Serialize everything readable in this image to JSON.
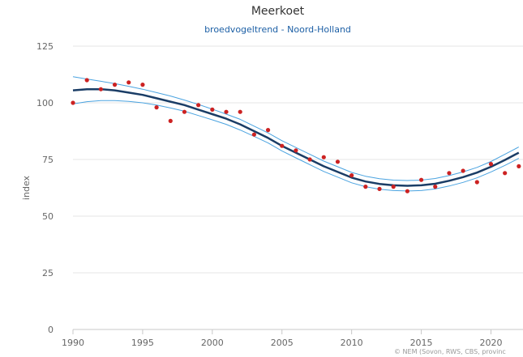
{
  "chart_data": {
    "type": "line",
    "title": "Meerkoet",
    "subtitle": "broedvogeltrend - Noord-Holland",
    "xlabel": "",
    "ylabel": "index",
    "xlim": [
      1990,
      2022.3
    ],
    "ylim": [
      0,
      125
    ],
    "x_ticks": [
      1990,
      1995,
      2000,
      2005,
      2010,
      2015,
      2020
    ],
    "y_ticks": [
      0,
      25,
      50,
      75,
      100,
      125
    ],
    "grid": "horizontal",
    "legend": "none",
    "credits": "© NEM (Sovon, RWS, CBS, provinc",
    "colors": {
      "trend": "#1a3d66",
      "band": "#4aa3e0",
      "points": "#cc2222",
      "grid": "#e6e6e6",
      "axis_text": "#666666"
    },
    "series": [
      {
        "type": "scatter",
        "x": [
          1990,
          1991,
          1992,
          1993,
          1994,
          1995,
          1996,
          1997,
          1998,
          1999,
          2000,
          2001,
          2002,
          2003,
          2004,
          2005,
          2006,
          2007,
          2008,
          2009,
          2010,
          2011,
          2012,
          2013,
          2014,
          2015,
          2016,
          2017,
          2018,
          2019,
          2020,
          2021,
          2022
        ],
        "y": [
          100,
          110,
          106,
          108,
          109,
          108,
          98,
          92,
          96,
          99,
          97,
          96,
          96,
          86,
          88,
          81,
          79,
          75,
          76,
          74,
          68,
          63,
          62,
          63,
          61,
          66,
          63,
          69,
          70,
          65,
          73,
          69,
          72
        ]
      },
      {
        "type": "line",
        "x": [
          1990,
          1991,
          1992,
          1993,
          1994,
          1995,
          1996,
          1997,
          1998,
          1999,
          2000,
          2001,
          2002,
          2003,
          2004,
          2005,
          2006,
          2007,
          2008,
          2009,
          2010,
          2011,
          2012,
          2013,
          2014,
          2015,
          2016,
          2017,
          2018,
          2019,
          2020,
          2021,
          2022
        ],
        "y": [
          105.5,
          106,
          106,
          105.5,
          104.5,
          103.5,
          102,
          100.5,
          99,
          97,
          95,
          93,
          90.5,
          87.5,
          84.5,
          81,
          78,
          75,
          72,
          69.5,
          67,
          65.3,
          64.2,
          63.6,
          63.4,
          63.6,
          64.3,
          65.6,
          67.2,
          69.2,
          71.8,
          74.8,
          78
        ]
      },
      {
        "type": "line",
        "x": [
          1990,
          1991,
          1992,
          1993,
          1994,
          1995,
          1996,
          1997,
          1998,
          1999,
          2000,
          2001,
          2002,
          2003,
          2004,
          2005,
          2006,
          2007,
          2008,
          2009,
          2010,
          2011,
          2012,
          2013,
          2014,
          2015,
          2016,
          2017,
          2018,
          2019,
          2020,
          2021,
          2022
        ],
        "y": [
          111.5,
          110.5,
          109.5,
          108.5,
          107.3,
          106,
          104.5,
          103,
          101.2,
          99.3,
          97.2,
          95,
          92.7,
          89.7,
          86.7,
          83.3,
          80.3,
          77.3,
          74.3,
          71.8,
          69.3,
          67.6,
          66.5,
          65.9,
          65.7,
          65.9,
          66.6,
          67.9,
          69.5,
          71.5,
          74.1,
          77.3,
          80.5
        ]
      },
      {
        "type": "line",
        "x": [
          1990,
          1991,
          1992,
          1993,
          1994,
          1995,
          1996,
          1997,
          1998,
          1999,
          2000,
          2001,
          2002,
          2003,
          2004,
          2005,
          2006,
          2007,
          2008,
          2009,
          2010,
          2011,
          2012,
          2013,
          2014,
          2015,
          2016,
          2017,
          2018,
          2019,
          2020,
          2021,
          2022
        ],
        "y": [
          99.5,
          100.5,
          101,
          101,
          100.6,
          100,
          99,
          97.7,
          96.3,
          94.4,
          92.5,
          90.5,
          88,
          85.2,
          82.3,
          78.8,
          75.7,
          72.7,
          69.7,
          67.2,
          64.7,
          63,
          61.9,
          61.3,
          61.1,
          61.3,
          62,
          63.3,
          64.9,
          66.9,
          69.5,
          72.4,
          75.5
        ]
      }
    ]
  }
}
